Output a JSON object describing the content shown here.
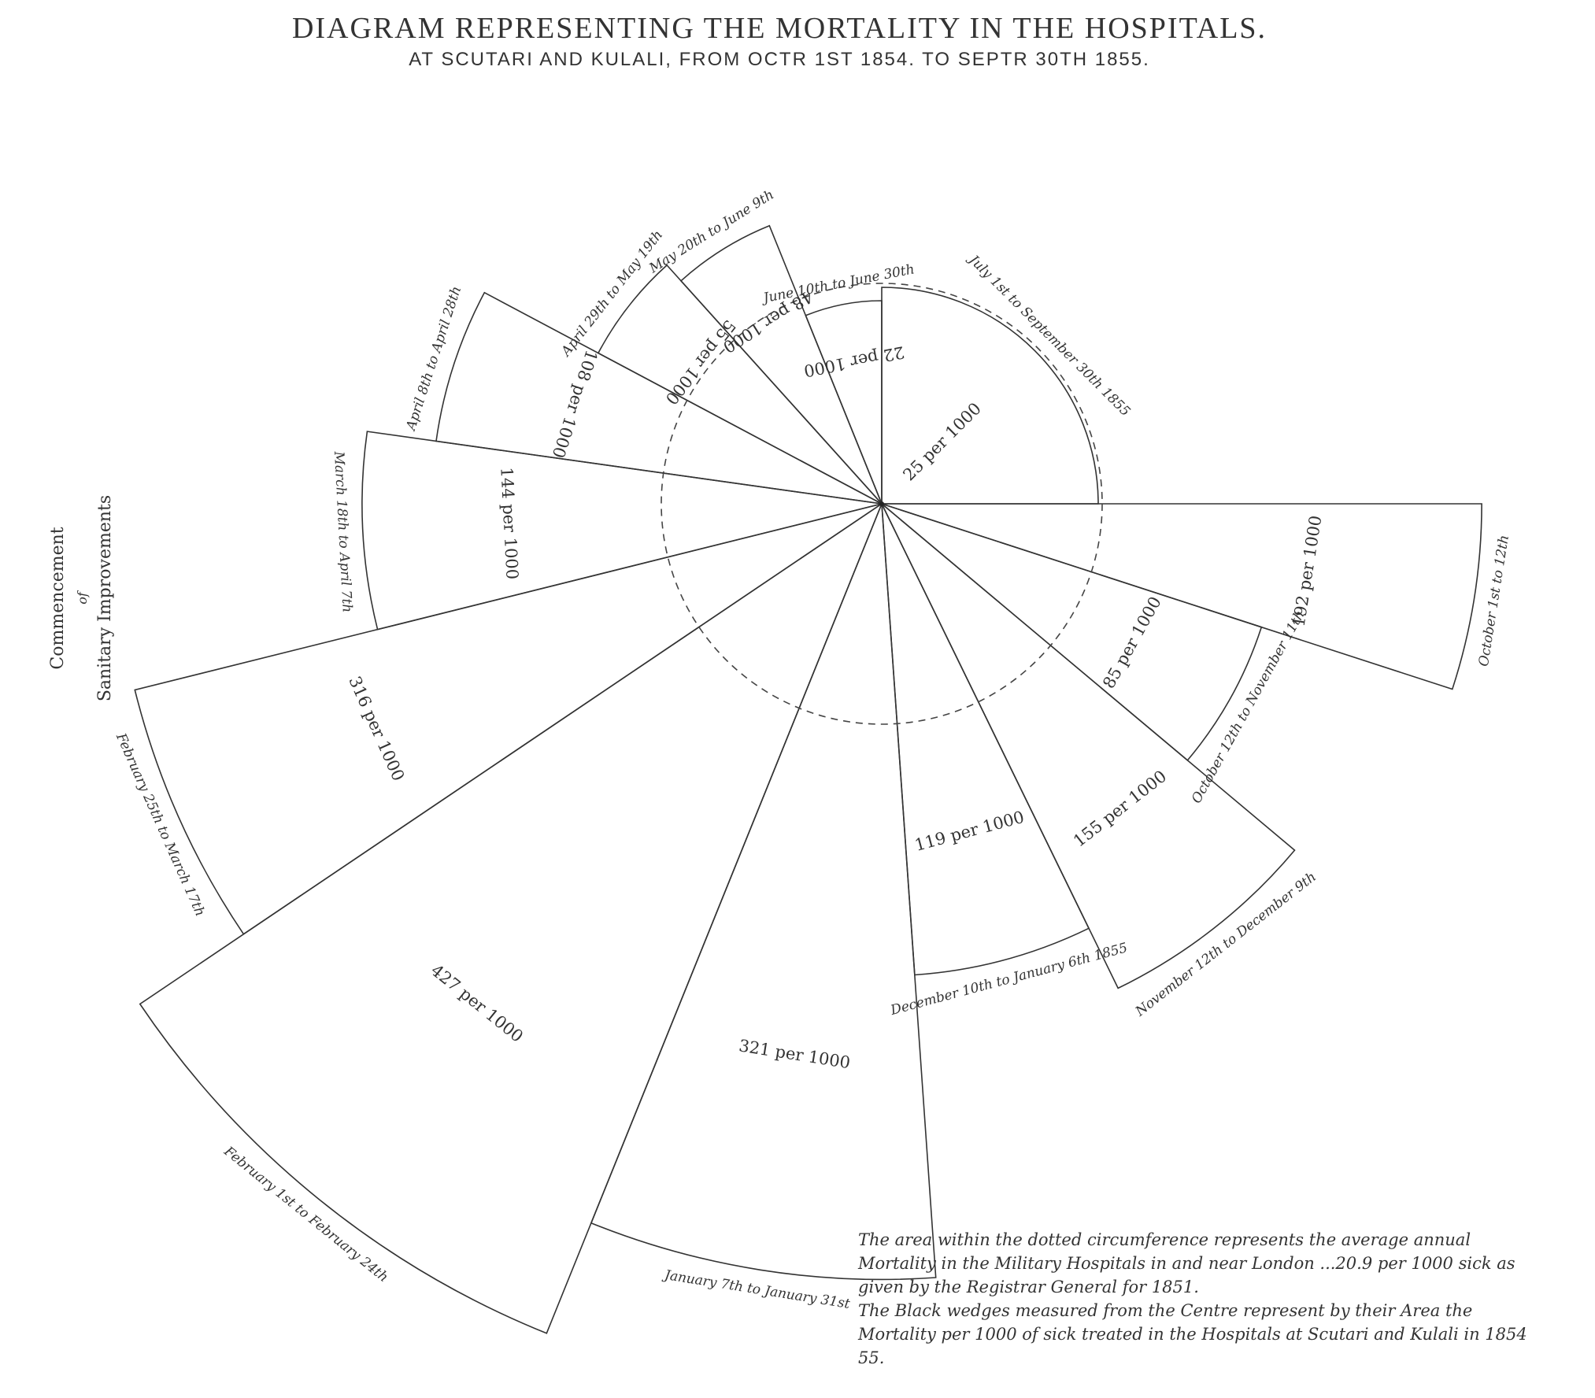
{
  "title": "DIAGRAM REPRESENTING THE MORTALITY IN THE HOSPITALS.",
  "subtitle": "AT SCUTARI AND KULALI, FROM OCTR 1ST 1854. TO SEPTR 30TH 1855.",
  "annotation": [
    "Commencement",
    "of",
    "Sanitary Improvements"
  ],
  "legend_lines": [
    "The area within the dotted circumference represents the average annual Mortality in the Military Hospitals in and near London ...20.9 per 1000 sick as given by the Registrar General for 1851.",
    "The Black wedges measured from the Centre represent by their Area the Mortality per 1000 of sick treated in the Hospitals at Scutari and Kulali in 1854 55."
  ],
  "chart_data": {
    "type": "polar-area",
    "reference": {
      "label": "London average",
      "value": 20.9
    },
    "series": [
      {
        "period": "October 1st to 12th",
        "value": 192,
        "value_label": "192 per 1000"
      },
      {
        "period": "October 12th to November 11th",
        "value": 85,
        "value_label": "85 per 1000"
      },
      {
        "period": "November 12th to December 9th",
        "value": 155,
        "value_label": "155 per 1000"
      },
      {
        "period": "December 10th to January 6th 1855",
        "value": 119,
        "value_label": "119 per 1000"
      },
      {
        "period": "January 7th to January 31st",
        "value": 321,
        "value_label": "321 per 1000"
      },
      {
        "period": "February 1st to February 24th",
        "value": 427,
        "value_label": "427 per 1000"
      },
      {
        "period": "February 25th to March 17th",
        "value": 316,
        "value_label": "316 per 1000"
      },
      {
        "period": "March 18th to April 7th",
        "value": 144,
        "value_label": "144 per 1000"
      },
      {
        "period": "April 8th to April 28th",
        "value": 108,
        "value_label": "108 per 1000"
      },
      {
        "period": "April 29th to May 19th",
        "value": 55,
        "value_label": "55 per 1000"
      },
      {
        "period": "May 20th to June 9th",
        "value": 48,
        "value_label": "48 per 1000"
      },
      {
        "period": "June 10th to June 30th",
        "value": 22,
        "value_label": "22 per 1000"
      },
      {
        "period": "July 1st to September 30th 1855",
        "value": 25,
        "value_label": "25 per 1000"
      }
    ]
  }
}
